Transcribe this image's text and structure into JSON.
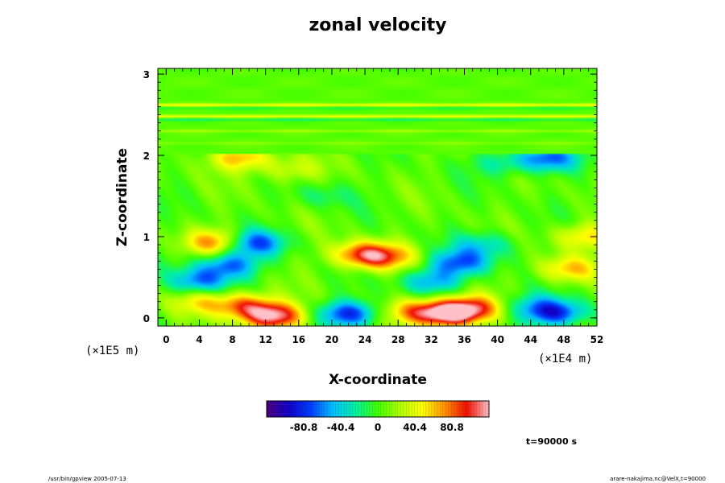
{
  "chart_data": {
    "type": "heatmap",
    "title": "zonal velocity",
    "xlabel": "X-coordinate",
    "ylabel": "Z-coordinate",
    "x_scale_label": "(×1E4 m)",
    "y_scale_label": "(×1E5 m)",
    "xlim": [
      -1,
      52
    ],
    "ylim": [
      -0.1,
      3.07
    ],
    "x_ticks": [
      0,
      4,
      8,
      12,
      16,
      20,
      24,
      28,
      32,
      36,
      40,
      44,
      48,
      52
    ],
    "y_ticks": [
      0,
      1,
      2,
      3
    ],
    "colorbar": {
      "min": -121.2,
      "max": 121.2,
      "ticks": [
        -80.8,
        -40.4,
        0,
        40.4,
        80.8
      ],
      "tick_labels": [
        "-80.8",
        "-40.4",
        "0",
        "40.4",
        "80.8"
      ]
    },
    "time_label": "t=90000 s",
    "features": [
      {
        "x": 34.0,
        "z": 0.05,
        "value": 115
      },
      {
        "x": 37.0,
        "z": 0.12,
        "value": 75
      },
      {
        "x": 30.0,
        "z": 0.08,
        "value": 60
      },
      {
        "x": 22.0,
        "z": 0.05,
        "value": -85
      },
      {
        "x": 47.0,
        "z": 0.06,
        "value": -85
      },
      {
        "x": 9.5,
        "z": 0.15,
        "value": 75
      },
      {
        "x": 13.0,
        "z": 0.02,
        "value": 110
      },
      {
        "x": 4.0,
        "z": 0.2,
        "value": 40
      },
      {
        "x": 10.5,
        "z": 0.92,
        "value": -80
      },
      {
        "x": 7.5,
        "z": 0.65,
        "value": -70
      },
      {
        "x": 4.0,
        "z": 0.45,
        "value": -65
      },
      {
        "x": 23.5,
        "z": 0.78,
        "value": 75
      },
      {
        "x": 26.5,
        "z": 0.75,
        "value": 60
      },
      {
        "x": 35.5,
        "z": 0.68,
        "value": -70
      },
      {
        "x": 32.0,
        "z": 0.45,
        "value": -55
      },
      {
        "x": 38.5,
        "z": 0.9,
        "value": -40
      },
      {
        "x": 6.0,
        "z": 0.93,
        "value": 70
      },
      {
        "x": 48.5,
        "z": 0.6,
        "value": 55
      },
      {
        "x": 50.5,
        "z": 1.0,
        "value": 50
      },
      {
        "x": 46.0,
        "z": 1.96,
        "value": -70
      },
      {
        "x": 9.0,
        "z": 1.97,
        "value": 60
      },
      {
        "x": 15.0,
        "z": 1.82,
        "value": 30
      },
      {
        "x": 40.5,
        "z": 1.9,
        "value": -30
      },
      {
        "x": 44.0,
        "z": 0.15,
        "value": -35
      },
      {
        "x": 19.0,
        "z": 1.5,
        "value": -20
      }
    ],
    "upper_layer": {
      "z_from": 2.02,
      "z_to": 3.07,
      "value": 5,
      "bands": [
        {
          "z": 2.62,
          "value": 45
        },
        {
          "z": 2.58,
          "value": -15
        },
        {
          "z": 2.48,
          "value": 40
        },
        {
          "z": 2.44,
          "value": -20
        },
        {
          "z": 2.3,
          "value": 15
        },
        {
          "z": 2.15,
          "value": 10
        }
      ]
    }
  },
  "footer": {
    "left": "/usr/bin/gpview 2005-07-13",
    "right": "arare-nakajima.nc@VelX,t=90000"
  }
}
